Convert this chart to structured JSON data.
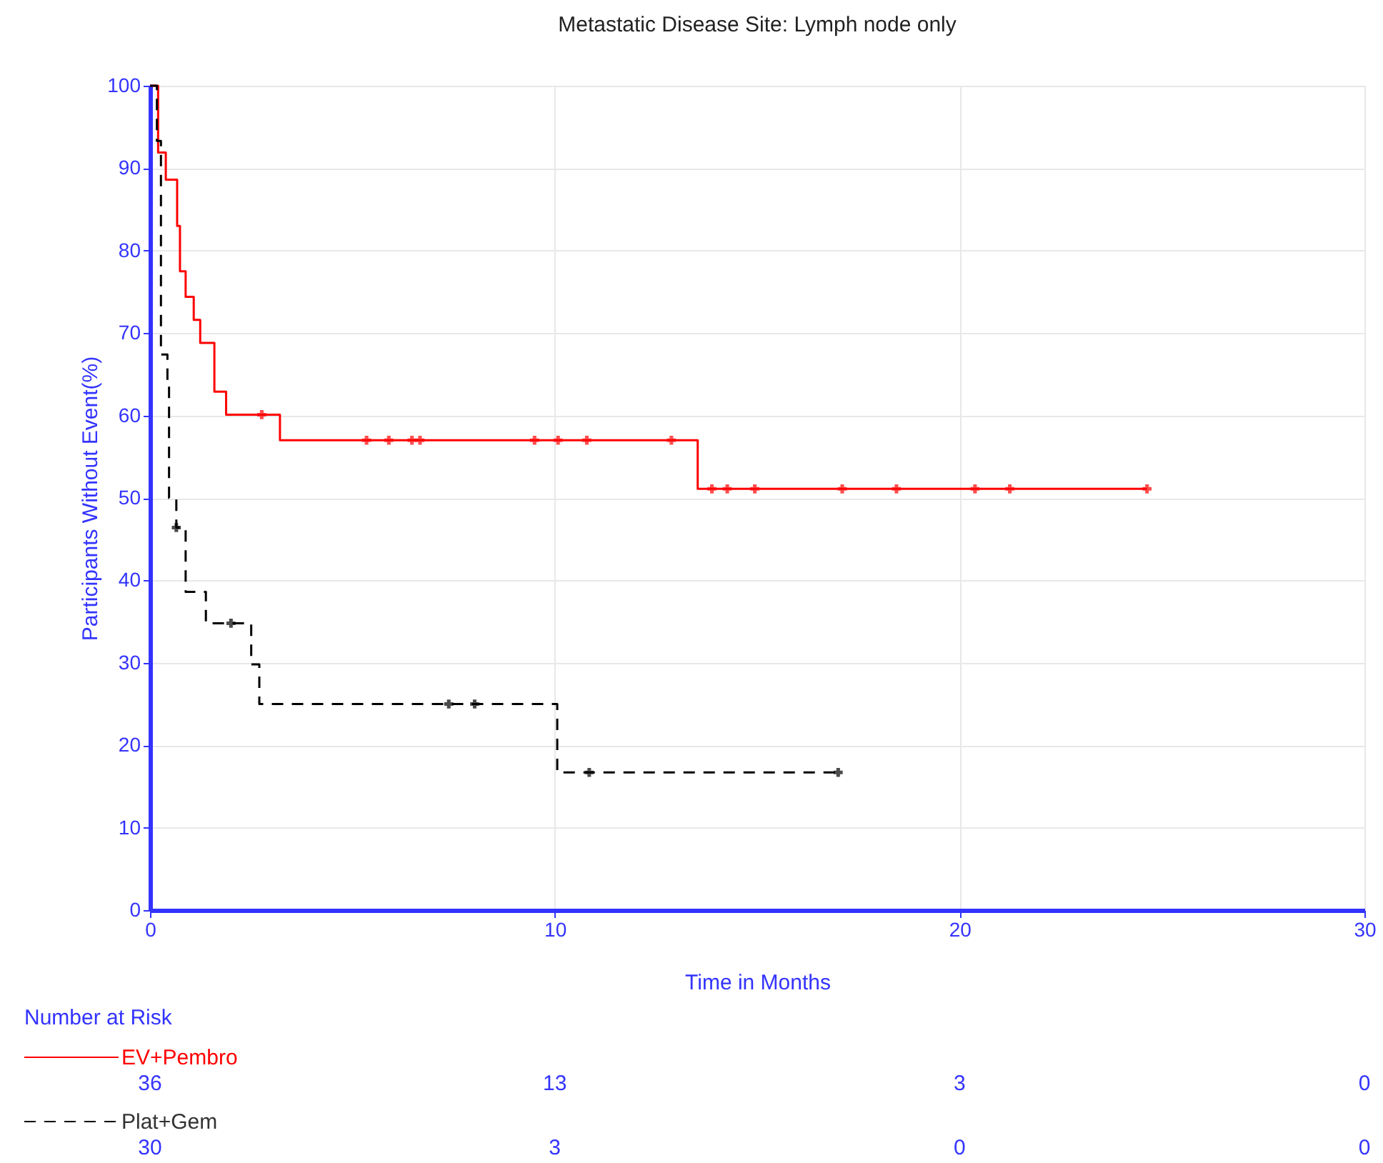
{
  "chart_data": {
    "type": "step",
    "title": "Metastatic Disease Site: Lymph node only",
    "xlabel": "Time in Months",
    "ylabel": "Participants Without Event(%)",
    "xlim": [
      0,
      30
    ],
    "xticks": [
      0,
      10,
      20,
      30
    ],
    "ylim": [
      0,
      100
    ],
    "yticks": [
      0,
      10,
      20,
      30,
      40,
      50,
      60,
      70,
      80,
      90,
      100
    ],
    "grid": true,
    "legend": "bottom left",
    "series": [
      {
        "name": "EV+Pembro",
        "color": "#ff0000",
        "line_style": "solid",
        "x": [
          0,
          0.2,
          0.39,
          0.67,
          0.74,
          0.88,
          1.08,
          1.24,
          1.59,
          1.88,
          3.21,
          13.53,
          24.63
        ],
        "values": [
          100,
          91.9,
          88.6,
          83,
          77.5,
          74.4,
          71.6,
          68.8,
          62.9,
          60.1,
          57,
          51.1,
          51.1
        ]
      },
      {
        "name": "Plat+Gem",
        "color": "#000000",
        "line_style": "dashed",
        "x": [
          0,
          0.17,
          0.27,
          0.43,
          0.47,
          0.65,
          0.88,
          1.38,
          2.5,
          2.7,
          10.06,
          17.0
        ],
        "values": [
          100,
          93.3,
          67.4,
          64.2,
          50,
          46.4,
          38.6,
          34.8,
          29.8,
          25,
          16.7,
          16.7
        ]
      },
      {
        "type": "scatter",
        "marker": "cross",
        "color": "#ff0000",
        "x": [
          2.76,
          5.35,
          5.9,
          6.47,
          6.67,
          9.5,
          10.08,
          10.79,
          12.88,
          13.88,
          14.26,
          14.94,
          17.1,
          18.44,
          20.38,
          21.24,
          24.63
        ],
        "values": [
          60.1,
          57,
          57,
          57,
          57,
          57,
          57,
          57,
          57,
          51.1,
          51.1,
          51.1,
          51.1,
          51.1,
          51.1,
          51.1,
          51.1
        ]
      },
      {
        "type": "scatter",
        "marker": "cross",
        "color": "#000000",
        "x": [
          0.65,
          2.0,
          7.38,
          8.02,
          10.85,
          17.0
        ],
        "values": [
          46.4,
          34.8,
          25,
          25,
          16.7,
          16.7
        ]
      }
    ],
    "annotations": [
      "Number at Risk",
      "36",
      "13",
      "3",
      "0",
      "30",
      "3",
      "0",
      "0"
    ]
  }
}
